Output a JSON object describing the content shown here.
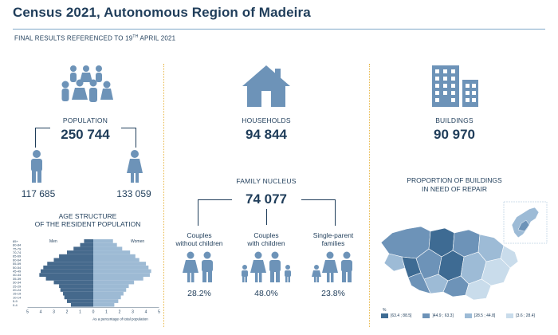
{
  "header": {
    "title": "Census 2021, Autonomous Region of Madeira",
    "subtitle_main": "FINAL RESULTS REFERENCED TO 19",
    "subtitle_sup": "TH",
    "subtitle_end": " APRIL 2021"
  },
  "population": {
    "label": "POPULATION",
    "value": "250 744",
    "male": "117 685",
    "female": "133 059"
  },
  "households": {
    "label": "HOUSEHOLDS",
    "value": "94 844"
  },
  "buildings": {
    "label": "BUILDINGS",
    "value": "90 970"
  },
  "family_nucleus": {
    "label": "FAMILY NUCLEUS",
    "value": "74 077",
    "items": [
      {
        "label_1": "Couples",
        "label_2": "without children",
        "pct": "28.2%"
      },
      {
        "label_1": "Couples",
        "label_2": "with children",
        "pct": "48.0%"
      },
      {
        "label_1": "Single-parent",
        "label_2": "families",
        "pct": "23.8%"
      }
    ]
  },
  "repair": {
    "label_1": "PROPORTION OF BUILDINGS",
    "label_2": "IN NEED OF REPAIR",
    "legend_title": "%",
    "legend": [
      "[63.4 ; 88.5]",
      "]44.9 ; 63.3]",
      "]28.5 ; 44.8]",
      "[3.6 ; 28.4]"
    ],
    "colors": [
      "#3e6b93",
      "#6d93b8",
      "#9dbbd6",
      "#c9dceb"
    ]
  },
  "pyramid": {
    "title_1": "AGE STRUCTURE",
    "title_2": "OF THE RESIDENT POPULATION",
    "men_label": "Men",
    "women_label": "Women",
    "xlabel": "As a percentage of total population",
    "x_ticks": [
      "5",
      "4",
      "3",
      "2",
      "1",
      "0",
      "1",
      "2",
      "3",
      "4",
      "5"
    ],
    "age_groups": [
      "85+",
      "80-84",
      "75-79",
      "70-74",
      "65-69",
      "60-64",
      "55-59",
      "50-54",
      "45-49",
      "40-44",
      "35-39",
      "30-34",
      "25-29",
      "20-24",
      "15-19",
      "10-14",
      "5-9",
      "0-4"
    ],
    "colors": {
      "men": "#45698c",
      "women": "#9dbad4"
    }
  },
  "chart_data": {
    "type": "bar",
    "title": "AGE STRUCTURE OF THE RESIDENT POPULATION",
    "xlabel": "As a percentage of total population",
    "categories": [
      "85+",
      "80-84",
      "75-79",
      "70-74",
      "65-69",
      "60-64",
      "55-59",
      "50-54",
      "45-49",
      "40-44",
      "35-39",
      "30-34",
      "25-29",
      "20-24",
      "15-19",
      "10-14",
      "5-9",
      "0-4"
    ],
    "series": [
      {
        "name": "Men",
        "values": [
          0.7,
          1.0,
          1.5,
          2.0,
          2.6,
          3.0,
          3.5,
          3.8,
          4.0,
          4.1,
          3.6,
          3.0,
          2.6,
          2.5,
          2.3,
          2.2,
          2.0,
          1.7
        ]
      },
      {
        "name": "Women",
        "values": [
          1.5,
          1.8,
          2.2,
          2.8,
          3.2,
          3.5,
          4.0,
          4.2,
          4.4,
          4.3,
          3.8,
          3.1,
          2.7,
          2.5,
          2.3,
          2.1,
          1.9,
          1.6
        ]
      }
    ],
    "xlim": [
      -5,
      5
    ]
  }
}
